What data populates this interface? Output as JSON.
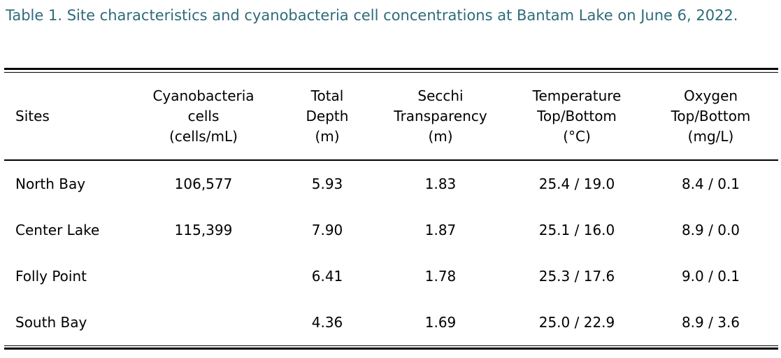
{
  "caption": "Table 1. Site characteristics and cyanobacteria cell concentrations at Bantam Lake on June 6, 2022.",
  "table": {
    "headers": [
      [
        "Sites"
      ],
      [
        "Cyanobacteria",
        "cells",
        "(cells/mL)"
      ],
      [
        "Total",
        "Depth",
        "(m)"
      ],
      [
        "Secchi",
        "Transparency",
        "(m)"
      ],
      [
        "Temperature",
        "Top/Bottom",
        "(°C)"
      ],
      [
        "Oxygen",
        "Top/Bottom",
        "(mg/L)"
      ]
    ],
    "rows": [
      [
        "North Bay",
        "106,577",
        "5.93",
        "1.83",
        "25.4 / 19.0",
        "8.4 / 0.1"
      ],
      [
        "Center Lake",
        "115,399",
        "7.90",
        "1.87",
        "25.1 / 16.0",
        "8.9 / 0.0"
      ],
      [
        "Folly Point",
        "",
        "6.41",
        "1.78",
        "25.3 / 17.6",
        "9.0 / 0.1"
      ],
      [
        "South Bay",
        "",
        "4.36",
        "1.69",
        "25.0 / 22.9",
        "8.9 / 3.6"
      ]
    ]
  }
}
